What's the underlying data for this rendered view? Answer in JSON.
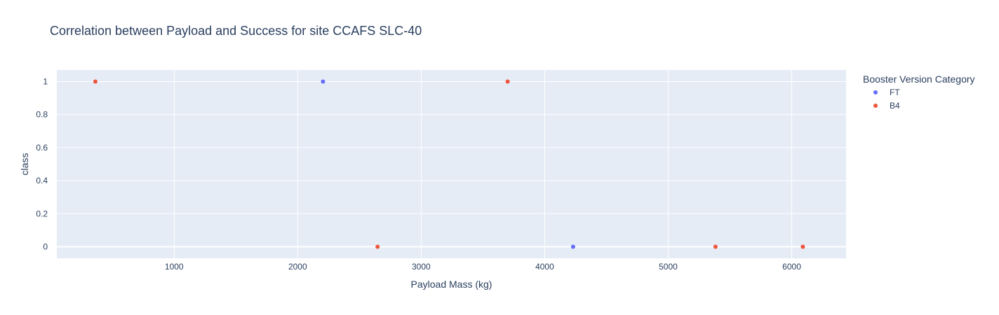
{
  "chart_data": {
    "type": "scatter",
    "title": "Correlation between Payload and Success for site CCAFS SLC-40",
    "xlabel": "Payload Mass (kg)",
    "ylabel": "class",
    "xlim": [
      50,
      6440
    ],
    "ylim": [
      -0.07,
      1.07
    ],
    "x_ticks": [
      1000,
      2000,
      3000,
      4000,
      5000,
      6000
    ],
    "y_ticks": [
      0,
      0.2,
      0.4,
      0.6,
      0.8,
      1
    ],
    "grid": true,
    "legend_title": "Booster Version Category",
    "legend_placement": "right",
    "series": [
      {
        "name": "FT",
        "color": "#636efa",
        "points": [
          {
            "x": 2205,
            "y": 1
          },
          {
            "x": 4230,
            "y": 0
          }
        ]
      },
      {
        "name": "B4",
        "color": "#ef553b",
        "points": [
          {
            "x": 362,
            "y": 1
          },
          {
            "x": 2647,
            "y": 0
          },
          {
            "x": 3700,
            "y": 1
          },
          {
            "x": 5383,
            "y": 0
          },
          {
            "x": 6090,
            "y": 0
          }
        ]
      }
    ],
    "plot_bg": "#e5ecf6",
    "grid_color": "#ffffff"
  }
}
